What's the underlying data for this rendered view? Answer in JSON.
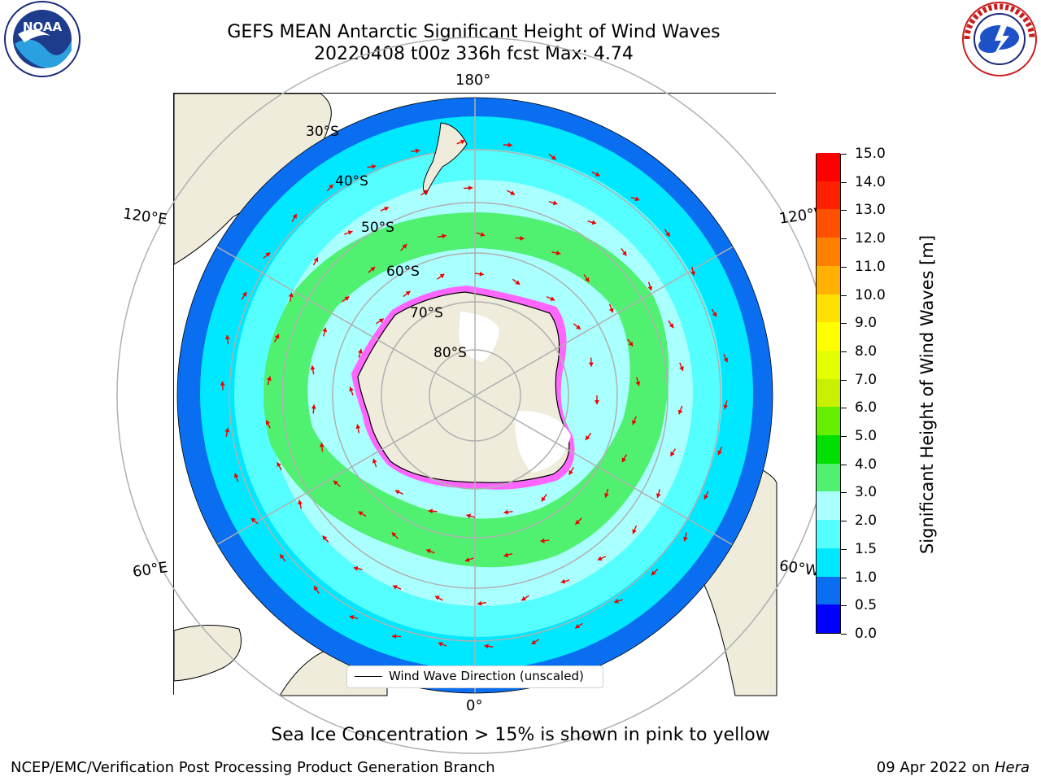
{
  "title_line1": "GEFS MEAN Antarctic Significant Height of Wind Waves",
  "title_line2": "20220408 t00z 336h fcst   Max: 4.74",
  "map": {
    "projection": "south-polar-stereographic",
    "lon_labels": {
      "top": "180°",
      "bottom": "0°",
      "left_upper": "120°E",
      "left_lower": "60°E",
      "right_upper": "120°W",
      "right_lower": "60°W"
    },
    "lat_labels": [
      "30°S",
      "40°S",
      "50°S",
      "60°S",
      "70°S",
      "80°S"
    ],
    "colors": {
      "land": "#efecdc",
      "ocean_low": "#0a6ef0",
      "ocean_mid": "#00e8ff",
      "ocean_high": "#aaffff",
      "band": "#50f070",
      "arrows": "#ee0000",
      "ice": "#ffffff"
    }
  },
  "legend": {
    "wind_wave_label": "Wind Wave Direction (unscaled)"
  },
  "colorbar": {
    "label": "Significant Height of Wind Waves [m]",
    "ticks": [
      "0.0",
      "0.5",
      "1.0",
      "1.5",
      "2.0",
      "3.0",
      "4.0",
      "5.0",
      "6.0",
      "7.0",
      "8.0",
      "9.0",
      "10.0",
      "11.0",
      "12.0",
      "13.0",
      "14.0",
      "15.0"
    ],
    "colors": [
      "#0000ff",
      "#0a6ef0",
      "#00e8ff",
      "#55ffff",
      "#aaffff",
      "#50f070",
      "#00e000",
      "#66ee00",
      "#c8f000",
      "#e6ff00",
      "#ffff00",
      "#ffe000",
      "#ffb000",
      "#ff8000",
      "#ff5000",
      "#ff2000",
      "#ff0000"
    ]
  },
  "ice_note": "Sea Ice Concentration > 15% is shown in pink to yellow",
  "footer": {
    "left": "NCEP/EMC/Verification Post Processing Product Generation Branch",
    "date": "09 Apr 2022 on ",
    "host": "Hera"
  }
}
